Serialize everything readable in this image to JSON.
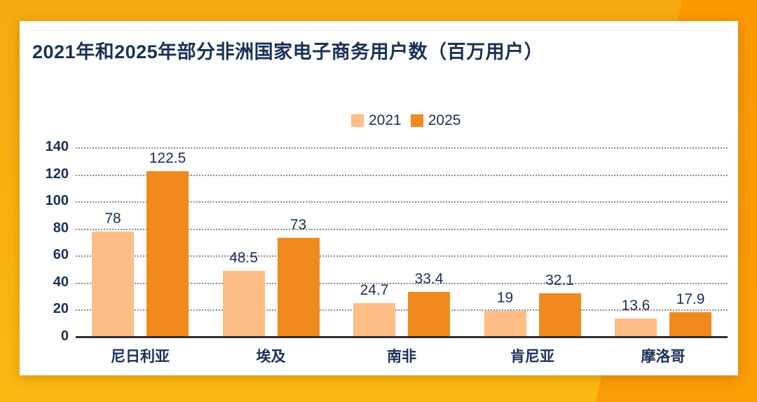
{
  "page": {
    "background_left_color": "#F8AE10",
    "background_right_color": "#FB9A04",
    "card_color": "#FFFFFF",
    "text_color": "#1B3156"
  },
  "header": {
    "title": "2021年和2025年部分非洲国家电子商务用户数（百万用户）"
  },
  "chart_data": {
    "type": "bar",
    "title": "2021年和2025年部分非洲国家电子商务用户数（百万用户）",
    "unit": "百万用户",
    "categories": [
      "尼日利亚",
      "埃及",
      "南非",
      "肯尼亚",
      "摩洛哥"
    ],
    "series": [
      {
        "name": "2021",
        "color": "#FFBE85",
        "values": [
          78,
          48.5,
          24.7,
          19,
          13.6
        ]
      },
      {
        "name": "2025",
        "color": "#F18A1E",
        "values": [
          122.5,
          73,
          33.4,
          32.1,
          17.9
        ]
      }
    ],
    "ylabel": "",
    "xlabel": "",
    "ylim": [
      0,
      140
    ],
    "ytick_step": 20,
    "yticks": [
      0,
      20,
      40,
      60,
      80,
      100,
      120,
      140
    ],
    "grid": "horizontal-dotted",
    "legend_position": "top-center",
    "data_labels": true
  }
}
